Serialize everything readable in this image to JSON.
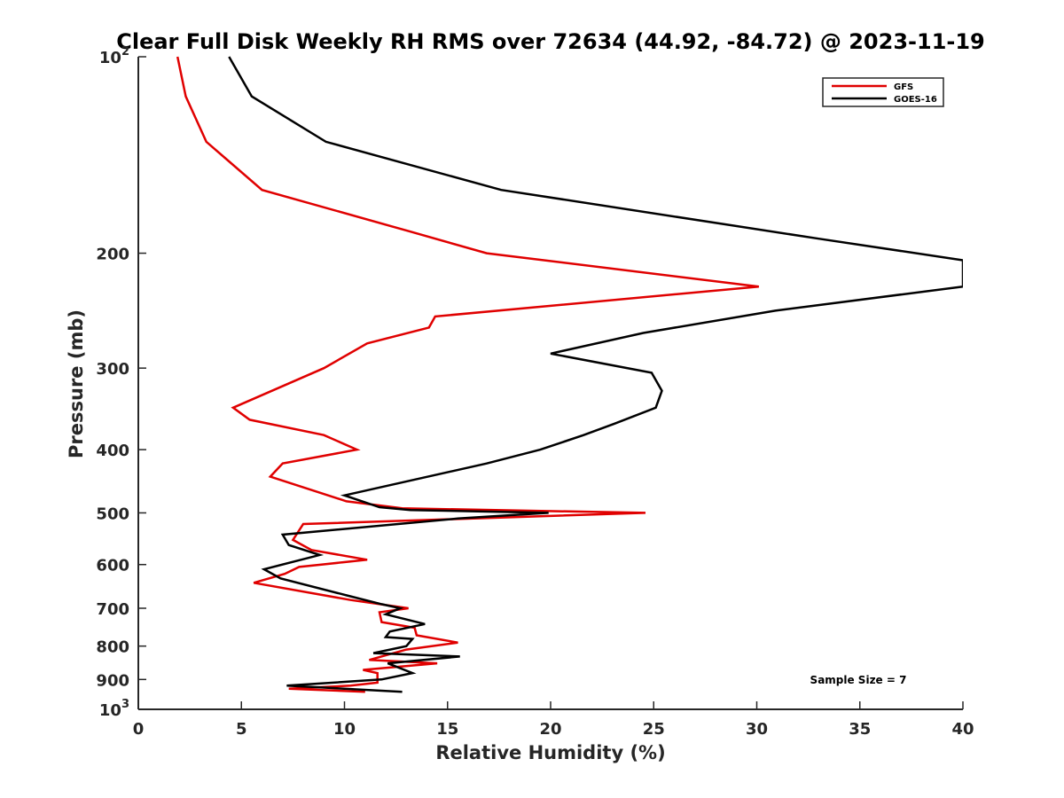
{
  "chart_data": {
    "type": "line",
    "title": "Clear Full Disk Weekly RH RMS over 72634 (44.92, -84.72) @ 2023-11-19",
    "xlabel": "Relative Humidity (%)",
    "ylabel": "Pressure (mb)",
    "xlim": [
      0,
      40
    ],
    "ylim": [
      100,
      1000
    ],
    "yscale": "log",
    "yreversed": true,
    "grid": false,
    "legend_position": "top-right",
    "xticks": [
      {
        "value": 0,
        "label": "0"
      },
      {
        "value": 5,
        "label": "5"
      },
      {
        "value": 10,
        "label": "10"
      },
      {
        "value": 15,
        "label": "15"
      },
      {
        "value": 20,
        "label": "20"
      },
      {
        "value": 25,
        "label": "25"
      },
      {
        "value": 30,
        "label": "30"
      },
      {
        "value": 35,
        "label": "35"
      },
      {
        "value": 40,
        "label": "40"
      }
    ],
    "yticks": [
      {
        "value": 100,
        "base": "10",
        "exp": "2"
      },
      {
        "value": 200,
        "label": "200"
      },
      {
        "value": 300,
        "label": "300"
      },
      {
        "value": 400,
        "label": "400"
      },
      {
        "value": 500,
        "label": "500"
      },
      {
        "value": 600,
        "label": "600"
      },
      {
        "value": 700,
        "label": "700"
      },
      {
        "value": 800,
        "label": "800"
      },
      {
        "value": 900,
        "label": "900"
      },
      {
        "value": 1000,
        "base": "10",
        "exp": "3"
      }
    ],
    "annotation": "Sample Size = 7",
    "series": [
      {
        "name": "GFS",
        "color": "#e00000",
        "points": [
          [
            1.9,
            100
          ],
          [
            2.3,
            115
          ],
          [
            3.3,
            135
          ],
          [
            6.0,
            160
          ],
          [
            13.1,
            185
          ],
          [
            16.9,
            200
          ],
          [
            30.1,
            225
          ],
          [
            14.4,
            250
          ],
          [
            14.1,
            260
          ],
          [
            11.1,
            275
          ],
          [
            9.0,
            300
          ],
          [
            4.6,
            345
          ],
          [
            5.4,
            360
          ],
          [
            9.0,
            380
          ],
          [
            10.6,
            400
          ],
          [
            7.0,
            420
          ],
          [
            6.4,
            440
          ],
          [
            10.1,
            480
          ],
          [
            12.8,
            492
          ],
          [
            24.6,
            500
          ],
          [
            8.0,
            520
          ],
          [
            7.5,
            550
          ],
          [
            8.4,
            570
          ],
          [
            11.1,
            590
          ],
          [
            7.8,
            605
          ],
          [
            7.1,
            620
          ],
          [
            5.6,
            640
          ],
          [
            10.3,
            680
          ],
          [
            13.1,
            700
          ],
          [
            11.7,
            710
          ],
          [
            11.8,
            735
          ],
          [
            13.4,
            750
          ],
          [
            13.5,
            770
          ],
          [
            15.5,
            790
          ],
          [
            13.0,
            810
          ],
          [
            11.2,
            840
          ],
          [
            14.5,
            850
          ],
          [
            10.9,
            870
          ],
          [
            11.6,
            880
          ],
          [
            11.6,
            910
          ],
          [
            10.3,
            920
          ],
          [
            7.3,
            930
          ],
          [
            11.0,
            940
          ]
        ]
      },
      {
        "name": "GOES-16",
        "color": "#000000",
        "points": [
          [
            4.4,
            100
          ],
          [
            5.5,
            115
          ],
          [
            9.1,
            135
          ],
          [
            17.6,
            160
          ],
          [
            33.0,
            190
          ],
          [
            40.0,
            205
          ],
          [
            40.0,
            225
          ],
          [
            30.9,
            245
          ],
          [
            24.5,
            265
          ],
          [
            20.0,
            285
          ],
          [
            24.9,
            305
          ],
          [
            25.4,
            325
          ],
          [
            25.1,
            345
          ],
          [
            23.1,
            365
          ],
          [
            21.6,
            380
          ],
          [
            19.5,
            400
          ],
          [
            16.9,
            420
          ],
          [
            10.0,
            470
          ],
          [
            11.7,
            490
          ],
          [
            13.2,
            495
          ],
          [
            19.9,
            500
          ],
          [
            15.5,
            510
          ],
          [
            7.0,
            540
          ],
          [
            7.3,
            560
          ],
          [
            8.8,
            580
          ],
          [
            6.1,
            610
          ],
          [
            6.9,
            630
          ],
          [
            10.2,
            670
          ],
          [
            11.8,
            690
          ],
          [
            12.7,
            700
          ],
          [
            12.0,
            715
          ],
          [
            13.9,
            740
          ],
          [
            12.2,
            760
          ],
          [
            12.0,
            775
          ],
          [
            13.3,
            780
          ],
          [
            13.0,
            800
          ],
          [
            11.4,
            820
          ],
          [
            15.6,
            830
          ],
          [
            12.1,
            850
          ],
          [
            13.3,
            880
          ],
          [
            11.8,
            900
          ],
          [
            7.2,
            920
          ],
          [
            12.8,
            940
          ]
        ]
      }
    ]
  }
}
